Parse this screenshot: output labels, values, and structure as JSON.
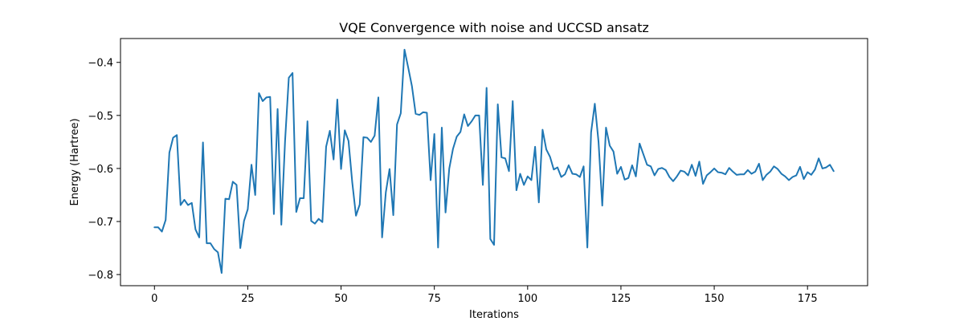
{
  "chart_data": {
    "type": "line",
    "title": "VQE Convergence with noise and UCCSD ansatz",
    "xlabel": "Iterations",
    "ylabel": "Energy (Hartree)",
    "xlim": [
      -9.1,
      191.1
    ],
    "ylim": [
      -0.821,
      -0.355
    ],
    "xticks": [
      0,
      25,
      50,
      75,
      100,
      125,
      150,
      175
    ],
    "yticks": [
      -0.8,
      -0.7,
      -0.6,
      -0.5,
      -0.4
    ],
    "grid": false,
    "legend": "none",
    "colors": {
      "series": "#1f77b4"
    },
    "series": [
      {
        "x": [
          0,
          1,
          2,
          3,
          4,
          5,
          6,
          7,
          8,
          9,
          10,
          11,
          12,
          13,
          14,
          15,
          16,
          17,
          18,
          19,
          20,
          21,
          22,
          23,
          24,
          25,
          26,
          27,
          28,
          29,
          30,
          31,
          32,
          33,
          34,
          35,
          36,
          37,
          38,
          39,
          40,
          41,
          42,
          43,
          44,
          45,
          46,
          47,
          48,
          49,
          50,
          51,
          52,
          53,
          54,
          55,
          56,
          57,
          58,
          59,
          60,
          61,
          62,
          63,
          64,
          65,
          66,
          67,
          68,
          69,
          70,
          71,
          72,
          73,
          74,
          75,
          76,
          77,
          78,
          79,
          80,
          81,
          82,
          83,
          84,
          85,
          86,
          87,
          88,
          89,
          90,
          91,
          92,
          93,
          94,
          95,
          96,
          97,
          98,
          99,
          100,
          101,
          102,
          103,
          104,
          105,
          106,
          107,
          108,
          109,
          110,
          111,
          112,
          113,
          114,
          115,
          116,
          117,
          118,
          119,
          120,
          121,
          122,
          123,
          124,
          125,
          126,
          127,
          128,
          129,
          130,
          131,
          132,
          133,
          134,
          135,
          136,
          137,
          138,
          139,
          140,
          141,
          142,
          143,
          144,
          145,
          146,
          147,
          148,
          149,
          150,
          151,
          152,
          153,
          154,
          155,
          156,
          157,
          158,
          159,
          160,
          161,
          162,
          163,
          164,
          165,
          166,
          167,
          168,
          169,
          170,
          171,
          172,
          173,
          174,
          175,
          176,
          177,
          178,
          179,
          180,
          181,
          182
        ],
        "values": [
          -0.711,
          -0.711,
          -0.719,
          -0.697,
          -0.57,
          -0.542,
          -0.537,
          -0.669,
          -0.659,
          -0.669,
          -0.665,
          -0.715,
          -0.73,
          -0.551,
          -0.741,
          -0.741,
          -0.752,
          -0.758,
          -0.797,
          -0.657,
          -0.658,
          -0.625,
          -0.631,
          -0.75,
          -0.699,
          -0.677,
          -0.593,
          -0.65,
          -0.458,
          -0.473,
          -0.466,
          -0.465,
          -0.686,
          -0.488,
          -0.706,
          -0.548,
          -0.429,
          -0.42,
          -0.682,
          -0.656,
          -0.656,
          -0.511,
          -0.699,
          -0.704,
          -0.695,
          -0.701,
          -0.559,
          -0.529,
          -0.583,
          -0.47,
          -0.601,
          -0.528,
          -0.548,
          -0.626,
          -0.689,
          -0.668,
          -0.541,
          -0.542,
          -0.55,
          -0.538,
          -0.466,
          -0.73,
          -0.645,
          -0.601,
          -0.688,
          -0.517,
          -0.496,
          -0.376,
          -0.41,
          -0.445,
          -0.497,
          -0.499,
          -0.494,
          -0.495,
          -0.622,
          -0.535,
          -0.749,
          -0.523,
          -0.683,
          -0.6,
          -0.563,
          -0.54,
          -0.531,
          -0.498,
          -0.52,
          -0.511,
          -0.5,
          -0.5,
          -0.631,
          -0.448,
          -0.733,
          -0.744,
          -0.479,
          -0.579,
          -0.581,
          -0.605,
          -0.473,
          -0.641,
          -0.61,
          -0.631,
          -0.615,
          -0.622,
          -0.559,
          -0.664,
          -0.527,
          -0.564,
          -0.578,
          -0.602,
          -0.598,
          -0.616,
          -0.611,
          -0.594,
          -0.61,
          -0.611,
          -0.616,
          -0.596,
          -0.749,
          -0.532,
          -0.478,
          -0.55,
          -0.67,
          -0.523,
          -0.557,
          -0.568,
          -0.61,
          -0.597,
          -0.621,
          -0.618,
          -0.594,
          -0.615,
          -0.553,
          -0.573,
          -0.593,
          -0.596,
          -0.613,
          -0.601,
          -0.599,
          -0.603,
          -0.616,
          -0.624,
          -0.615,
          -0.604,
          -0.606,
          -0.613,
          -0.593,
          -0.614,
          -0.587,
          -0.629,
          -0.613,
          -0.607,
          -0.6,
          -0.607,
          -0.608,
          -0.611,
          -0.599,
          -0.606,
          -0.612,
          -0.611,
          -0.611,
          -0.603,
          -0.61,
          -0.606,
          -0.591,
          -0.622,
          -0.612,
          -0.606,
          -0.596,
          -0.601,
          -0.61,
          -0.615,
          -0.622,
          -0.616,
          -0.613,
          -0.597,
          -0.62,
          -0.607,
          -0.612,
          -0.602,
          -0.581,
          -0.6,
          -0.598,
          -0.593,
          -0.605
        ]
      }
    ]
  }
}
